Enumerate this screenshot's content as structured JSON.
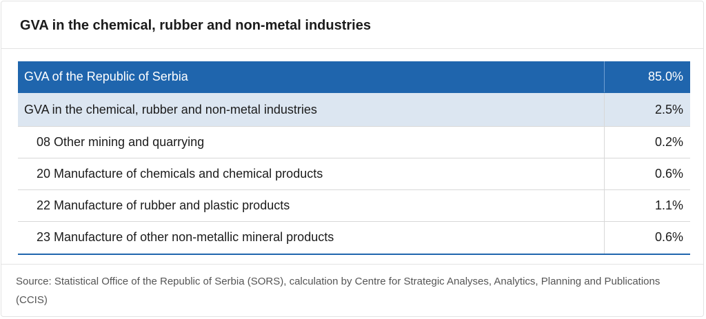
{
  "header": {
    "title": "GVA in the chemical, rubber and non-metal industries"
  },
  "table": {
    "rows": [
      [
        "GVA of the Republic of Serbia",
        "85.0%"
      ],
      [
        "GVA in the chemical, rubber and non-metal industries",
        "2.5%"
      ],
      [
        "08 Other mining and quarrying",
        "0.2%"
      ],
      [
        "20 Manufacture of chemicals and chemical products",
        "0.6%"
      ],
      [
        "22 Manufacture of rubber and plastic products",
        "1.1%"
      ],
      [
        "23 Manufacture of other non-metallic mineral products",
        "0.6%"
      ]
    ]
  },
  "footer": {
    "source": "Source: Statistical Office of the Republic of Serbia (SORS), calculation by Centre for Strategic Analyses, Analytics, Planning and Publications (CCIS)"
  }
}
